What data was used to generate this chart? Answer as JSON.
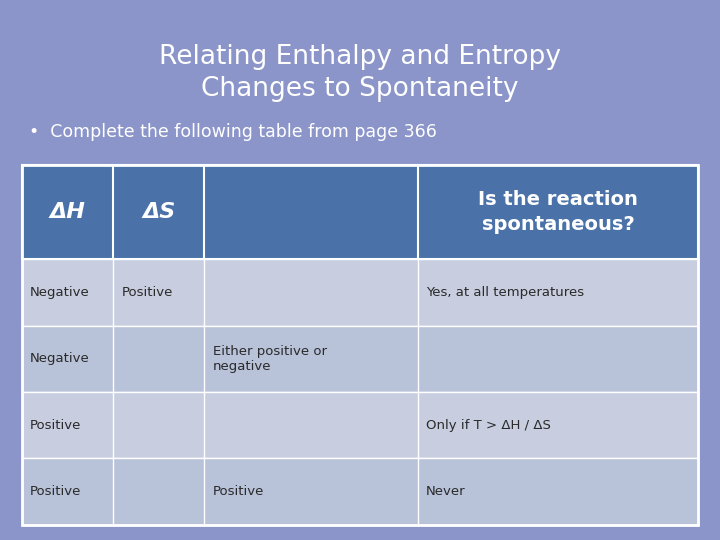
{
  "title_line1": "Relating Enthalpy and Entropy",
  "title_line2": "Changes to Spontaneity",
  "subtitle": "•  Complete the following table from page 366",
  "bg_color": "#8b95c9",
  "table_header_bg": "#4a72a8",
  "table_row_bg1": "#c8cedf",
  "table_row_bg2": "#b8c2d8",
  "table_border_color": "#ffffff",
  "title_color": "#ffffff",
  "subtitle_color": "#ffffff",
  "header_text_color": "#ffffff",
  "row_text_color": "#2a2a2a",
  "headers": [
    "ΔH",
    "ΔS",
    "",
    "Is the reaction\nspontaneous?"
  ],
  "rows": [
    [
      "Negative",
      "Positive",
      "",
      "Yes, at all temperatures"
    ],
    [
      "Negative",
      "",
      "Either positive or\nnegative",
      ""
    ],
    [
      "Positive",
      "",
      "",
      "Only if T > ΔH / ΔS"
    ],
    [
      "Positive",
      "",
      "Positive",
      "Never"
    ]
  ]
}
